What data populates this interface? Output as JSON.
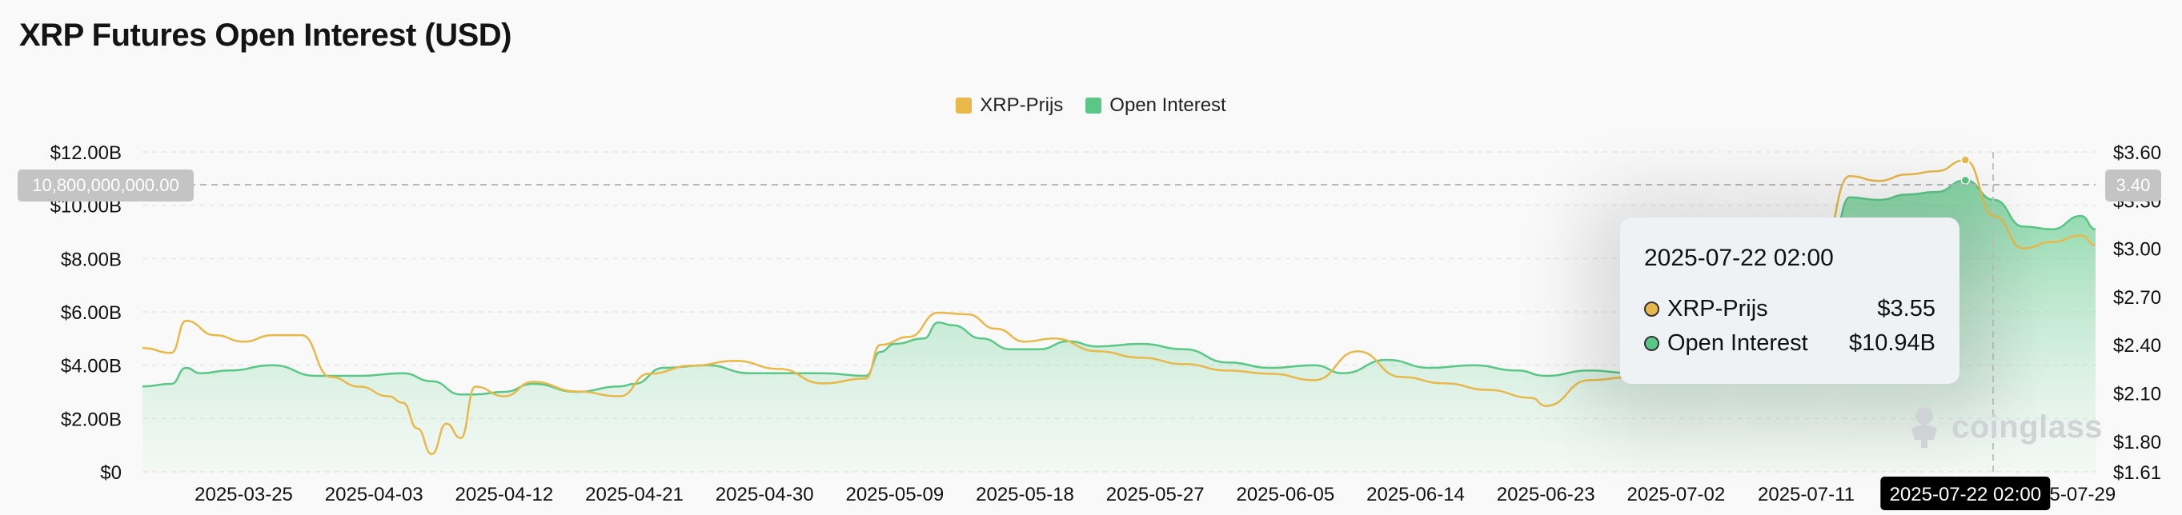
{
  "header": {
    "title": "XRP Futures Open Interest (USD)"
  },
  "legend": [
    {
      "label": "XRP-Prijs",
      "color": "#e8b94a"
    },
    {
      "label": "Open Interest",
      "color": "#5ac786"
    }
  ],
  "crosshair": {
    "left_label": "10,800,000,000.00",
    "right_label": "3.40",
    "x_label": "2025-07-22 02:00"
  },
  "tooltip": {
    "title": "2025-07-22 02:00",
    "rows": [
      {
        "label": "XRP-Prijs",
        "value": "$3.55",
        "color": "#e8b94a"
      },
      {
        "label": "Open Interest",
        "value": "$10.94B",
        "color": "#5ac786"
      }
    ]
  },
  "watermark": {
    "text": "coinglass"
  },
  "chart_data": {
    "type": "area",
    "title": "XRP Futures Open Interest (USD)",
    "x_tick_labels": [
      "2025-03-25",
      "2025-04-03",
      "2025-04-12",
      "2025-04-21",
      "2025-04-30",
      "2025-05-09",
      "2025-05-18",
      "2025-05-27",
      "2025-06-05",
      "2025-06-14",
      "2025-06-23",
      "2025-07-02",
      "2025-07-11",
      "2025-07-22 02:00",
      "2025-07-29"
    ],
    "x_range": [
      "2025-03-18",
      "2025-07-31"
    ],
    "y_left": {
      "ticks": [
        "$0",
        "$2.00B",
        "$4.00B",
        "$6.00B",
        "$8.00B",
        "$10.00B",
        "$12.00B"
      ],
      "range": [
        0,
        12
      ]
    },
    "y_right": {
      "ticks": [
        "$1.61",
        "$1.80",
        "$2.10",
        "$2.40",
        "$2.70",
        "$3.00",
        "$3.30",
        "$3.60"
      ],
      "range": [
        1.61,
        3.6
      ]
    },
    "grid": true,
    "legend_position": "top-center",
    "series": [
      {
        "name": "Open Interest",
        "axis": "left",
        "color": "#5ac786",
        "x": [
          "2025-03-18",
          "2025-03-20",
          "2025-03-21",
          "2025-03-22",
          "2025-03-24",
          "2025-03-27",
          "2025-03-30",
          "2025-04-02",
          "2025-04-05",
          "2025-04-07",
          "2025-04-09",
          "2025-04-10",
          "2025-04-12",
          "2025-04-14",
          "2025-04-17",
          "2025-04-20",
          "2025-04-21",
          "2025-04-23",
          "2025-04-26",
          "2025-04-29",
          "2025-05-01",
          "2025-05-04",
          "2025-05-07",
          "2025-05-08",
          "2025-05-09",
          "2025-05-11",
          "2025-05-12",
          "2025-05-13",
          "2025-05-15",
          "2025-05-17",
          "2025-05-19",
          "2025-05-21",
          "2025-05-23",
          "2025-05-26",
          "2025-05-29",
          "2025-06-01",
          "2025-06-04",
          "2025-06-07",
          "2025-06-09",
          "2025-06-12",
          "2025-06-15",
          "2025-06-18",
          "2025-06-21",
          "2025-06-23",
          "2025-06-26",
          "2025-06-29",
          "2025-07-01",
          "2025-07-04",
          "2025-07-07",
          "2025-07-10",
          "2025-07-12",
          "2025-07-14",
          "2025-07-16",
          "2025-07-18",
          "2025-07-20",
          "2025-07-22",
          "2025-07-24",
          "2025-07-26",
          "2025-07-28",
          "2025-07-30",
          "2025-07-31"
        ],
        "values": [
          3.2,
          3.3,
          3.9,
          3.7,
          3.8,
          4.0,
          3.6,
          3.6,
          3.7,
          3.4,
          2.9,
          2.9,
          3.0,
          3.3,
          3.0,
          3.2,
          3.3,
          3.9,
          4.0,
          3.7,
          3.7,
          3.7,
          3.6,
          4.5,
          4.8,
          5.0,
          5.6,
          5.5,
          5.0,
          4.6,
          4.6,
          4.9,
          4.7,
          4.8,
          4.6,
          4.1,
          3.9,
          4.0,
          3.7,
          4.2,
          3.9,
          4.0,
          3.8,
          3.6,
          3.8,
          3.7,
          3.9,
          4.2,
          4.6,
          4.8,
          5.2,
          10.3,
          10.2,
          10.4,
          10.5,
          10.94,
          10.2,
          9.2,
          9.1,
          9.6,
          9.1
        ]
      },
      {
        "name": "XRP-Prijs",
        "axis": "right",
        "color": "#e8b94a",
        "x": [
          "2025-03-18",
          "2025-03-20",
          "2025-03-21",
          "2025-03-23",
          "2025-03-25",
          "2025-03-27",
          "2025-03-29",
          "2025-03-31",
          "2025-04-02",
          "2025-04-04",
          "2025-04-05",
          "2025-04-06",
          "2025-04-07",
          "2025-04-08",
          "2025-04-09",
          "2025-04-10",
          "2025-04-12",
          "2025-04-14",
          "2025-04-17",
          "2025-04-20",
          "2025-04-22",
          "2025-04-25",
          "2025-04-28",
          "2025-05-01",
          "2025-05-04",
          "2025-05-07",
          "2025-05-08",
          "2025-05-10",
          "2025-05-12",
          "2025-05-14",
          "2025-05-16",
          "2025-05-18",
          "2025-05-20",
          "2025-05-23",
          "2025-05-26",
          "2025-05-29",
          "2025-06-01",
          "2025-06-04",
          "2025-06-07",
          "2025-06-10",
          "2025-06-13",
          "2025-06-16",
          "2025-06-19",
          "2025-06-22",
          "2025-06-23",
          "2025-06-26",
          "2025-06-29",
          "2025-07-02",
          "2025-07-05",
          "2025-07-08",
          "2025-07-10",
          "2025-07-12",
          "2025-07-14",
          "2025-07-16",
          "2025-07-18",
          "2025-07-20",
          "2025-07-22",
          "2025-07-24",
          "2025-07-26",
          "2025-07-28",
          "2025-07-30",
          "2025-07-31"
        ],
        "values": [
          2.38,
          2.35,
          2.55,
          2.46,
          2.42,
          2.46,
          2.46,
          2.2,
          2.14,
          2.08,
          2.04,
          1.88,
          1.72,
          1.91,
          1.82,
          2.14,
          2.08,
          2.17,
          2.11,
          2.08,
          2.22,
          2.27,
          2.3,
          2.25,
          2.16,
          2.19,
          2.4,
          2.45,
          2.6,
          2.59,
          2.5,
          2.42,
          2.44,
          2.36,
          2.32,
          2.28,
          2.24,
          2.22,
          2.18,
          2.36,
          2.2,
          2.16,
          2.12,
          2.07,
          2.02,
          2.18,
          2.2,
          2.24,
          2.26,
          2.36,
          2.42,
          2.96,
          3.45,
          3.42,
          3.46,
          3.48,
          3.55,
          3.2,
          3.0,
          3.04,
          3.08,
          3.02
        ]
      }
    ]
  }
}
